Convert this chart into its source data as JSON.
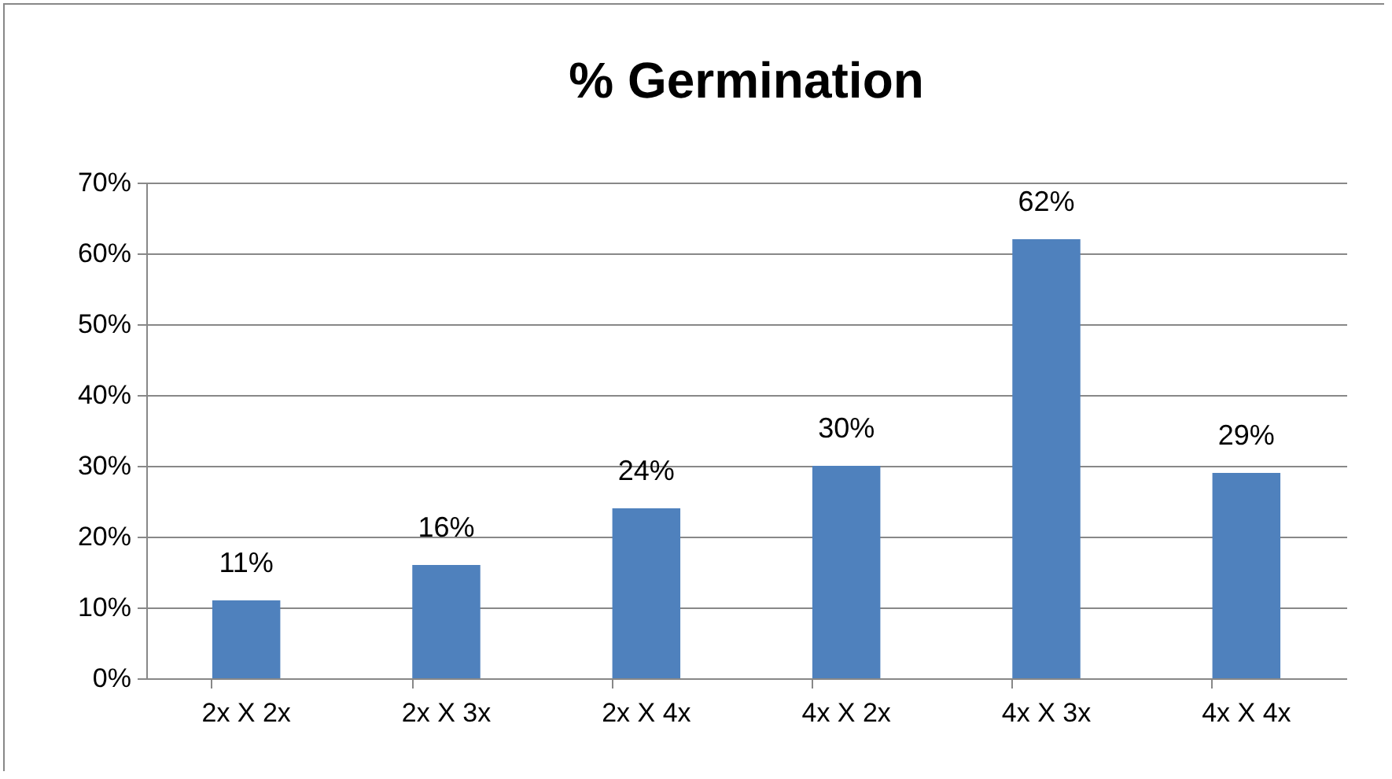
{
  "chart_data": {
    "type": "bar",
    "title": "% Germination",
    "categories": [
      "2x X 2x",
      "2x X 3x",
      "2x X 4x",
      "4x X 2x",
      "4x X 3x",
      "4x X 4x"
    ],
    "values": [
      11,
      16,
      24,
      30,
      62,
      29
    ],
    "value_labels": [
      "11%",
      "16%",
      "24%",
      "30%",
      "62%",
      "29%"
    ],
    "color": "#4f81bd",
    "ylim": [
      0,
      70
    ],
    "yticks": [
      {
        "value": 0,
        "label": "0%"
      },
      {
        "value": 10,
        "label": "10%"
      },
      {
        "value": 20,
        "label": "20%"
      },
      {
        "value": 30,
        "label": "30%"
      },
      {
        "value": 40,
        "label": "40%"
      },
      {
        "value": 50,
        "label": "50%"
      },
      {
        "value": 60,
        "label": "60%"
      },
      {
        "value": 70,
        "label": "70%"
      }
    ],
    "grid": "y"
  }
}
